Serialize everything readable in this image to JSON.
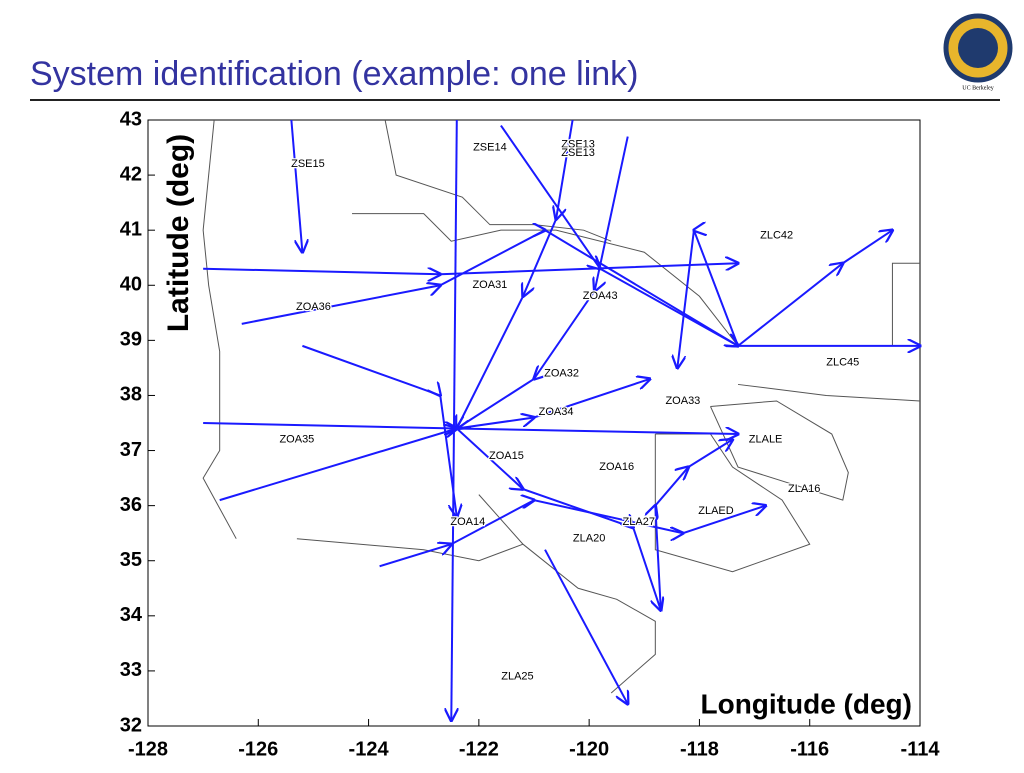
{
  "header": {
    "title": "System identification (example: one link)",
    "logo_text": "UC Berkeley"
  },
  "chart_data": {
    "type": "line",
    "x_label": "Longitude (deg)",
    "y_label": "Latitude (deg)",
    "xlim": [
      -128,
      -114
    ],
    "ylim": [
      32,
      43
    ],
    "xticks": [
      -128,
      -126,
      -124,
      -122,
      -120,
      -118,
      -116,
      -114
    ],
    "yticks": [
      32,
      33,
      34,
      35,
      36,
      37,
      38,
      39,
      40,
      41,
      42,
      43
    ],
    "boundary_color": "#555555",
    "boundaries": [
      {
        "x": [
          -126.8,
          -127.0,
          -126.9,
          -126.7,
          -126.7,
          -127.0,
          -126.4
        ],
        "y": [
          43,
          41.0,
          40.0,
          38.8,
          37.0,
          36.5,
          35.4
        ]
      },
      {
        "x": [
          -123.7,
          -123.5,
          -122.3,
          -121.8,
          -121.0,
          -120.1,
          -119.6
        ],
        "y": [
          43,
          42.0,
          41.6,
          41.1,
          41.1,
          41.0,
          40.8
        ]
      },
      {
        "x": [
          -117.8,
          -116.6,
          -115.6,
          -115.3,
          -115.4,
          -117.3,
          -117.8
        ],
        "y": [
          37.8,
          37.9,
          37.3,
          36.6,
          36.1,
          36.7,
          37.8
        ]
      },
      {
        "x": [
          -118.8,
          -117.8,
          -117.4,
          -116.5,
          -116.0,
          -117.4,
          -118.8,
          -118.8
        ],
        "y": [
          37.3,
          37.3,
          36.7,
          36.1,
          35.3,
          34.8,
          35.2,
          37.3
        ]
      },
      {
        "x": [
          -122.0,
          -121.2,
          -120.2,
          -119.5,
          -118.8,
          -118.8,
          -119.6
        ],
        "y": [
          36.2,
          35.3,
          34.5,
          34.3,
          33.9,
          33.3,
          32.6
        ]
      },
      {
        "x": [
          -125.3,
          -123.0,
          -122.0,
          -121.2
        ],
        "y": [
          35.4,
          35.2,
          35.0,
          35.3
        ]
      },
      {
        "x": [
          -117.3,
          -115.7,
          -114.0
        ],
        "y": [
          38.2,
          38.0,
          37.9
        ]
      },
      {
        "x": [
          -117.3,
          -114.5,
          -114.5,
          -114.0
        ],
        "y": [
          38.9,
          38.9,
          40.4,
          40.4
        ]
      },
      {
        "x": [
          -124.3,
          -123.0,
          -122.5,
          -121.6,
          -120.6,
          -119.0,
          -118.0,
          -117.3
        ],
        "y": [
          41.3,
          41.3,
          40.8,
          41.0,
          41.0,
          40.6,
          39.8,
          38.9
        ]
      }
    ],
    "series": [
      {
        "color": "#1a1aff",
        "x": [
          -127.0,
          -122.7,
          -117.3
        ],
        "y": [
          40.3,
          40.2,
          40.4
        ]
      },
      {
        "color": "#1a1aff",
        "x": [
          -125.4,
          -125.2
        ],
        "y": [
          43.0,
          40.6
        ]
      },
      {
        "color": "#1a1aff",
        "x": [
          -126.3,
          -122.7,
          -120.8,
          -117.3
        ],
        "y": [
          39.3,
          40.0,
          41.0,
          38.9
        ]
      },
      {
        "color": "#1a1aff",
        "x": [
          -127.0,
          -122.4,
          -117.3
        ],
        "y": [
          37.5,
          37.4,
          37.3
        ]
      },
      {
        "color": "#1a1aff",
        "x": [
          -126.7,
          -122.4,
          -121.0,
          -118.9
        ],
        "y": [
          36.1,
          37.4,
          37.6,
          38.3
        ]
      },
      {
        "color": "#1a1aff",
        "x": [
          -125.2,
          -122.7,
          -122.4
        ],
        "y": [
          38.9,
          38.0,
          35.8
        ]
      },
      {
        "color": "#1a1aff",
        "x": [
          -122.4,
          -122.5
        ],
        "y": [
          43.0,
          32.1
        ]
      },
      {
        "color": "#1a1aff",
        "x": [
          -120.8,
          -119.3
        ],
        "y": [
          35.2,
          32.4
        ]
      },
      {
        "color": "#1a1aff",
        "x": [
          -117.3,
          -114.0
        ],
        "y": [
          38.9,
          38.9
        ]
      },
      {
        "color": "#1a1aff",
        "x": [
          -117.3,
          -115.4,
          -114.5
        ],
        "y": [
          38.9,
          40.4,
          41.0
        ]
      },
      {
        "color": "#1a1aff",
        "x": [
          -117.3,
          -118.1,
          -118.4
        ],
        "y": [
          38.9,
          41.0,
          38.5
        ]
      },
      {
        "color": "#1a1aff",
        "x": [
          -121.6,
          -119.8,
          -117.3
        ],
        "y": [
          42.9,
          40.3,
          38.9
        ]
      },
      {
        "color": "#1a1aff",
        "x": [
          -120.3,
          -120.6,
          -121.2,
          -122.4
        ],
        "y": [
          43.0,
          41.2,
          39.8,
          37.4
        ]
      },
      {
        "color": "#1a1aff",
        "x": [
          -119.3,
          -119.9,
          -121.0,
          -122.4
        ],
        "y": [
          42.7,
          39.9,
          38.3,
          37.4
        ]
      },
      {
        "color": "#1a1aff",
        "x": [
          -118.7,
          -118.8,
          -118.2,
          -117.4
        ],
        "y": [
          34.1,
          36.0,
          36.7,
          37.2
        ]
      },
      {
        "color": "#1a1aff",
        "x": [
          -122.4,
          -121.2,
          -119.2,
          -118.7
        ],
        "y": [
          37.4,
          36.3,
          35.6,
          34.1
        ]
      },
      {
        "color": "#1a1aff",
        "x": [
          -123.8,
          -122.5,
          -121.0,
          -118.3,
          -116.8
        ],
        "y": [
          34.9,
          35.3,
          36.1,
          35.5,
          36.0
        ]
      }
    ],
    "annotations": [
      {
        "text": "ZSE15",
        "x": -125.1,
        "y": 42.2
      },
      {
        "text": "ZSE14",
        "x": -121.8,
        "y": 42.5
      },
      {
        "text": "ZSE13",
        "x": -120.2,
        "y": 42.55
      },
      {
        "text": "ZSE13",
        "x": -120.2,
        "y": 42.4
      },
      {
        "text": "ZLC42",
        "x": -116.6,
        "y": 40.9
      },
      {
        "text": "ZOA31",
        "x": -121.8,
        "y": 40.0
      },
      {
        "text": "ZOA36",
        "x": -125.0,
        "y": 39.6
      },
      {
        "text": "ZOA43",
        "x": -119.8,
        "y": 39.8
      },
      {
        "text": "ZLC45",
        "x": -115.4,
        "y": 38.6
      },
      {
        "text": "ZOA32",
        "x": -120.5,
        "y": 38.4
      },
      {
        "text": "ZOA33",
        "x": -118.3,
        "y": 37.9
      },
      {
        "text": "ZOA34",
        "x": -120.6,
        "y": 37.7
      },
      {
        "text": "ZLALE",
        "x": -116.8,
        "y": 37.2
      },
      {
        "text": "ZOA35",
        "x": -125.3,
        "y": 37.2
      },
      {
        "text": "ZOA15",
        "x": -121.5,
        "y": 36.9
      },
      {
        "text": "ZOA16",
        "x": -119.5,
        "y": 36.7
      },
      {
        "text": "ZLA16",
        "x": -116.1,
        "y": 36.3
      },
      {
        "text": "ZLAED",
        "x": -117.7,
        "y": 35.9
      },
      {
        "text": "ZLA27",
        "x": -119.1,
        "y": 35.7
      },
      {
        "text": "ZOA14",
        "x": -122.2,
        "y": 35.7
      },
      {
        "text": "ZLA20",
        "x": -120.0,
        "y": 35.4
      },
      {
        "text": "ZLA25",
        "x": -121.3,
        "y": 32.9
      }
    ]
  }
}
